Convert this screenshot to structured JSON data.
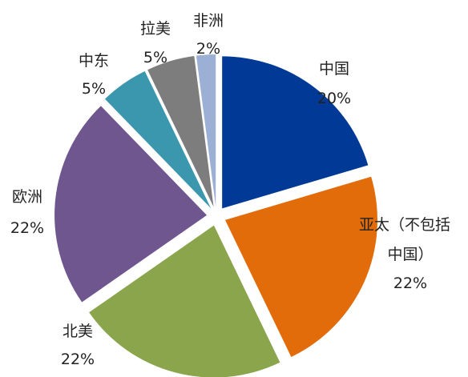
{
  "chart_data": {
    "type": "pie",
    "title": "",
    "slices": [
      {
        "name": "中国",
        "value": 20,
        "label": "20%",
        "color": "#003a96"
      },
      {
        "name": "亚太（不包括中国）",
        "name_lines": [
          "亚太（不包括",
          "中国）"
        ],
        "value": 22,
        "label": "22%",
        "color": "#e36c0a"
      },
      {
        "name": "北美",
        "value": 22,
        "label": "22%",
        "color": "#8aa54c"
      },
      {
        "name": "欧洲",
        "value": 22,
        "label": "22%",
        "color": "#6f568f"
      },
      {
        "name": "中东",
        "value": 5,
        "label": "5%",
        "color": "#3a97ae"
      },
      {
        "name": "拉美",
        "value": 5,
        "label": "5%",
        "color": "#7d7d7d"
      },
      {
        "name": "非洲",
        "value": 2,
        "label": "2%",
        "color": "#9cb0d6"
      }
    ],
    "explode": true,
    "legend": "none"
  }
}
